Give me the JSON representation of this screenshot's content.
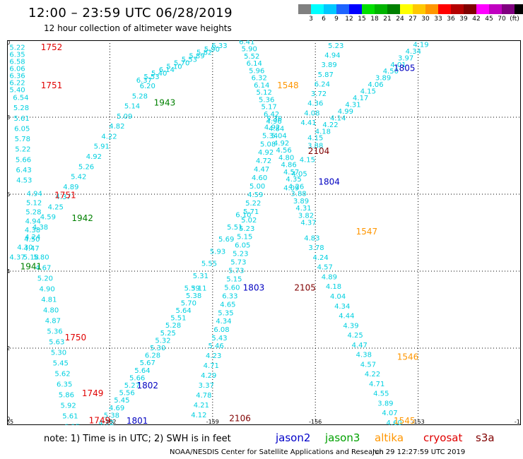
{
  "header": {
    "title": "12:00 – 23:59 UTC 06/28/2019",
    "subtitle": "12 hour collection of altimeter wave heights"
  },
  "color_scale": {
    "colors": [
      "#808080",
      "#00ffff",
      "#00c8ff",
      "#1e64ff",
      "#0000ff",
      "#00e000",
      "#00b400",
      "#008000",
      "#ffff00",
      "#ffc800",
      "#ff9600",
      "#ff0000",
      "#b40000",
      "#800000",
      "#ff00ff",
      "#c000c0",
      "#800080",
      "#000000"
    ],
    "labels": [
      "3",
      "6",
      "9",
      "12",
      "15",
      "18",
      "21",
      "24",
      "27",
      "30",
      "33",
      "36",
      "39",
      "42",
      "45",
      "70",
      "(ft)"
    ],
    "unit": "(ft)"
  },
  "map": {
    "x_ticks": [
      "-165",
      "-162",
      "-159",
      "-156",
      "-153",
      "-150"
    ],
    "y_ticks": [
      "50",
      "48",
      "46",
      "44",
      "42",
      "40"
    ],
    "wave_color": "#00d0e0",
    "tracks": [
      {
        "id": "jason2-1805-a",
        "start": [
          -164.7,
          49.75
        ],
        "end": [
          -164.7,
          48.65
        ],
        "values": [
          "5.22",
          "6.35",
          "6.58",
          "6.06",
          "6.36",
          "6.22",
          "5.40"
        ]
      },
      {
        "id": "jason2-1805-b",
        "start": [
          -164.6,
          48.45
        ],
        "end": [
          -164.5,
          46.3
        ],
        "values": [
          "6.54",
          "5.28",
          "5.61",
          "6.05",
          "5.78",
          "5.22",
          "5.66",
          "6.43",
          "4.53"
        ]
      },
      {
        "id": "cs-1751",
        "start": [
          -164.2,
          45.95
        ],
        "end": [
          -164.3,
          44.3
        ],
        "values": [
          "4.94",
          "5.12",
          "5.28",
          "4.94",
          "4.38",
          "4.50",
          "4.47",
          "5.18"
        ]
      },
      {
        "id": "j3-1941",
        "start": [
          -164.0,
          44.3
        ],
        "end": [
          -163.1,
          39.9
        ],
        "values": [
          "5.80",
          "4.67",
          "5.20",
          "4.90",
          "4.81",
          "4.80",
          "4.87",
          "5.36",
          "5.63",
          "5.30",
          "5.45",
          "5.62",
          "6.35",
          "5.86",
          "5.92",
          "5.61",
          "6.15"
        ]
      },
      {
        "id": "j3-1942",
        "start": [
          -160.9,
          48.75
        ],
        "end": [
          -164.7,
          44.3
        ],
        "values": [
          "6.20",
          "5.28",
          "5.14",
          "5.09",
          "4.82",
          "4.22",
          "5.91",
          "4.92",
          "5.26",
          "5.42",
          "4.89",
          "4.37",
          "4.25",
          "4.59",
          "4.38",
          "4.24",
          "4.30",
          "4.37"
        ]
      },
      {
        "id": "j3-1943",
        "start": [
          -158.8,
          49.8
        ],
        "end": [
          -161.0,
          48.9
        ],
        "values": [
          "6.33",
          "5.90",
          "5.82",
          "5.89",
          "5.53",
          "5.70",
          "5.10",
          "6.14",
          "5.40",
          "5.53",
          "6.37"
        ]
      },
      {
        "id": "j2-1802",
        "start": [
          -159.4,
          43.5
        ],
        "end": [
          -162.1,
          40.0
        ],
        "values": [
          "5.11",
          "5.38",
          "5.70",
          "5.64",
          "5.51",
          "5.28",
          "5.25",
          "5.32",
          "5.30",
          "6.28",
          "5.67",
          "5.64",
          "5.66",
          "5.27",
          "5.56",
          "5.45",
          "4.69",
          "5.38",
          "4.72"
        ]
      },
      {
        "id": "j2-1803",
        "start": [
          -158.1,
          45.4
        ],
        "end": [
          -159.6,
          43.5
        ],
        "values": [
          "6.10",
          "5.51",
          "5.69",
          "5.93",
          "5.55",
          "5.31",
          "5.39"
        ]
      },
      {
        "id": "cs-2106",
        "start": [
          -158.9,
          42.0
        ],
        "end": [
          -159.4,
          40.2
        ],
        "values": [
          "5.46",
          "4.23",
          "4.71",
          "4.29",
          "3.37",
          "4.78",
          "4.21",
          "4.12"
        ]
      },
      {
        "id": "cs-2105",
        "start": [
          -157.2,
          47.9
        ],
        "end": [
          -158.8,
          42.2
        ],
        "values": [
          "5.36",
          "4.92",
          "5.34",
          "5.08",
          "4.92",
          "4.72",
          "4.47",
          "4.60",
          "5.00",
          "4.59",
          "5.22",
          "5.71",
          "5.02",
          "5.23",
          "5.15",
          "6.05",
          "5.23",
          "5.73",
          "5.73",
          "5.15",
          "5.60",
          "6.33",
          "4.65",
          "5.35",
          "4.34",
          "6.08",
          "5.43"
        ]
      },
      {
        "id": "s3a-2104",
        "start": [
          -158.0,
          49.9
        ],
        "end": [
          -156.2,
          45.2
        ],
        "values": [
          "6.41",
          "5.90",
          "5.52",
          "6.14",
          "5.96",
          "6.32",
          "6.14",
          "5.12",
          "5.36",
          "5.17",
          "6.42",
          "4.96",
          "4.84",
          "5.04",
          "4.92",
          "4.56",
          "4.80",
          "4.86",
          "4.57",
          "4.35",
          "4.26",
          "3.88",
          "3.89",
          "4.31",
          "3.82",
          "4.37"
        ]
      },
      {
        "id": "j2-1804",
        "start": [
          -156.1,
          44.8
        ],
        "end": [
          -153.7,
          40.0
        ],
        "values": [
          "4.83",
          "3.78",
          "4.24",
          "4.57",
          "4.89",
          "4.18",
          "4.04",
          "4.34",
          "4.44",
          "4.39",
          "4.25",
          "4.47",
          "4.38",
          "4.57",
          "4.22",
          "4.71",
          "4.55",
          "3.89",
          "4.07",
          "4.60"
        ]
      },
      {
        "id": "al-1546",
        "start": [
          -155.4,
          49.8
        ],
        "end": [
          -156.2,
          47.8
        ],
        "values": [
          "5.23",
          "4.94",
          "3.89",
          "5.87",
          "6.24",
          "3.72",
          "4.36",
          "4.08",
          "4.41"
        ]
      },
      {
        "id": "s3a-2104b",
        "start": [
          -156.0,
          47.2
        ],
        "end": [
          -156.7,
          46.1
        ],
        "values": [
          "3.88",
          "4.15",
          "4.05",
          "4.09"
        ]
      },
      {
        "id": "j2-1805",
        "start": [
          -152.7,
          50.0
        ],
        "end": [
          -156.0,
          47.4
        ],
        "values": [
          "4.45",
          "4.19",
          "4.34",
          "3.97",
          "4.01",
          "4.50",
          "3.89",
          "4.06",
          "4.15",
          "4.17",
          "4.31",
          "4.99",
          "4.14",
          "4.22",
          "4.18",
          "4.15"
        ]
      }
    ],
    "pass_labels": [
      {
        "text": "1752",
        "lon": -163.7,
        "lat": 49.75,
        "color": "#e00000"
      },
      {
        "text": "1751",
        "lon": -163.7,
        "lat": 48.75,
        "color": "#e00000"
      },
      {
        "text": "1943",
        "lon": -160.4,
        "lat": 48.3,
        "color": "#008000"
      },
      {
        "text": "1548",
        "lon": -156.8,
        "lat": 48.75,
        "color": "#ff9600"
      },
      {
        "text": "1805",
        "lon": -153.4,
        "lat": 49.2,
        "color": "#0000c0"
      },
      {
        "text": "2104",
        "lon": -155.9,
        "lat": 47.05,
        "color": "#800000"
      },
      {
        "text": "1804",
        "lon": -155.6,
        "lat": 46.25,
        "color": "#0000c0"
      },
      {
        "text": "1751",
        "lon": -163.3,
        "lat": 45.9,
        "color": "#e00000"
      },
      {
        "text": "1942",
        "lon": -162.8,
        "lat": 45.3,
        "color": "#008000"
      },
      {
        "text": "1547",
        "lon": -154.5,
        "lat": 44.95,
        "color": "#ff9600"
      },
      {
        "text": "1941",
        "lon": -164.3,
        "lat": 44.05,
        "color": "#008000"
      },
      {
        "text": "1803",
        "lon": -157.8,
        "lat": 43.5,
        "color": "#0000c0"
      },
      {
        "text": "2105",
        "lon": -156.3,
        "lat": 43.5,
        "color": "#800000"
      },
      {
        "text": "1750",
        "lon": -163.0,
        "lat": 42.2,
        "color": "#e00000"
      },
      {
        "text": "1546",
        "lon": -153.3,
        "lat": 41.7,
        "color": "#ff9600"
      },
      {
        "text": "1802",
        "lon": -160.9,
        "lat": 40.95,
        "color": "#0000c0"
      },
      {
        "text": "1749",
        "lon": -162.5,
        "lat": 40.75,
        "color": "#e00000"
      },
      {
        "text": "2106",
        "lon": -158.2,
        "lat": 40.1,
        "color": "#800000"
      },
      {
        "text": "1801",
        "lon": -161.2,
        "lat": 40.0,
        "color": "#0000c0"
      },
      {
        "text": "1749",
        "lon": -162.3,
        "lat": 40.05,
        "color": "#e00000"
      },
      {
        "text": "1545",
        "lon": -153.4,
        "lat": 40.0,
        "color": "#ff9600"
      }
    ]
  },
  "footer": {
    "note": "note: 1) Time is in UTC; 2) SWH is in feet",
    "legend": [
      {
        "text": "jason2",
        "color": "#0000c8"
      },
      {
        "text": "jason3",
        "color": "#00a000"
      },
      {
        "text": "altika",
        "color": "#ff9600"
      },
      {
        "text": "cryosat",
        "color": "#e00000"
      },
      {
        "text": "s3a",
        "color": "#800000"
      }
    ],
    "credit": "NOAA/NESDIS Center for Satellite Applications and Research",
    "timestamp": "Jun 29 12:27:59 UTC 2019"
  }
}
